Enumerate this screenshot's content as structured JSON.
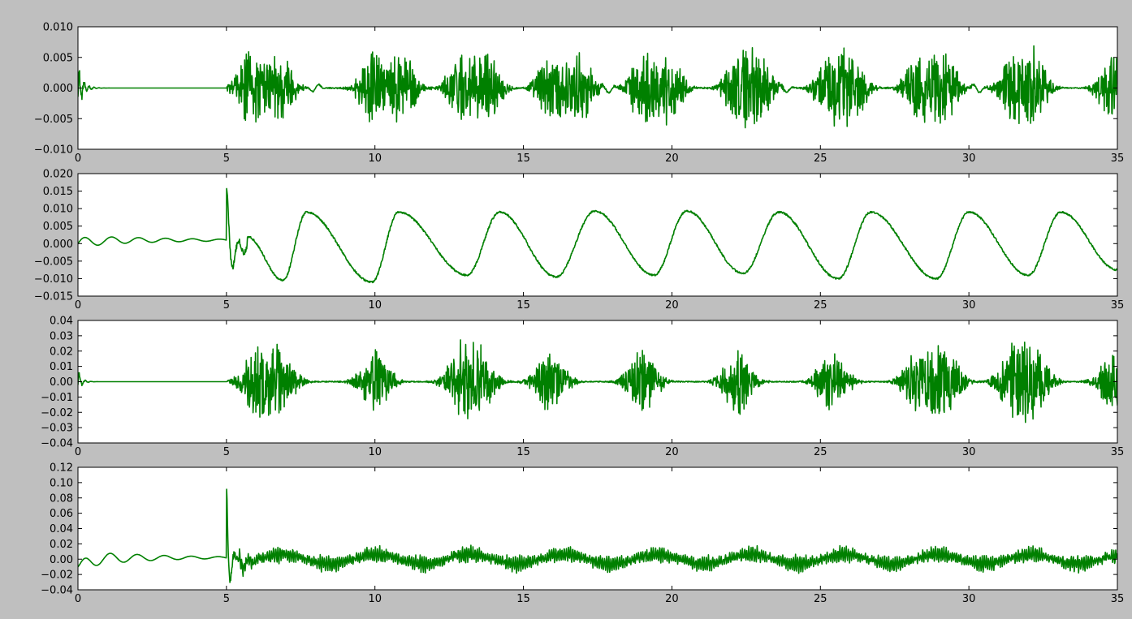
{
  "figure": {
    "background": "#bfbfbf",
    "line_color": "#008000",
    "axes_background": "#ffffff"
  },
  "chart_data": [
    {
      "type": "line",
      "title": "",
      "xlabel": "",
      "ylabel": "",
      "xlim": [
        0,
        35
      ],
      "ylim": [
        -0.01,
        0.01
      ],
      "grid": false,
      "xticks": [
        0,
        5,
        10,
        15,
        20,
        25,
        30,
        35
      ],
      "xtick_labels": [
        "0",
        "5",
        "10",
        "15",
        "20",
        "25",
        "30",
        "35"
      ],
      "yticks": [
        -0.01,
        -0.005,
        0.0,
        0.005,
        0.01
      ],
      "ytick_labels": [
        "−0.010",
        "−0.005",
        "0.000",
        "0.005",
        "0.010"
      ],
      "signal": {
        "kind": "bursts",
        "baseline": 0.0,
        "initial_oscillation": {
          "amplitude": 0.003,
          "freq": 6.0,
          "decay": 6.0
        },
        "burst_centers": [
          5.8,
          6.8,
          9.9,
          10.9,
          12.9,
          13.8,
          15.9,
          16.9,
          19.0,
          19.9,
          22.2,
          22.9,
          25.3,
          26.1,
          28.3,
          29.2,
          31.5,
          32.2,
          34.8
        ],
        "burst_amplitude": 0.0062,
        "burst_width": 0.35,
        "slow_hump_centers": [
          8.0,
          11.2,
          17.9,
          23.8,
          30.3
        ],
        "slow_hump_amplitude": 0.0008,
        "x_start_bursts": 5.0
      }
    },
    {
      "type": "line",
      "title": "",
      "xlabel": "",
      "ylabel": "",
      "xlim": [
        0,
        35
      ],
      "ylim": [
        -0.015,
        0.02
      ],
      "grid": false,
      "xticks": [
        0,
        5,
        10,
        15,
        20,
        25,
        30,
        35
      ],
      "xtick_labels": [
        "0",
        "5",
        "10",
        "15",
        "20",
        "25",
        "30",
        "35"
      ],
      "yticks": [
        -0.015,
        -0.01,
        -0.005,
        0.0,
        0.005,
        0.01,
        0.015,
        0.02
      ],
      "ytick_labels": [
        "−0.015",
        "−0.010",
        "−0.005",
        "0.000",
        "0.005",
        "0.010",
        "0.015",
        "0.020"
      ],
      "signal": {
        "kind": "slow_wave",
        "initial_oscillation": {
          "amplitude": 0.0015,
          "offset": 0.001,
          "freq": 1.1,
          "decay": 0.35
        },
        "spike": {
          "x": 5.05,
          "peak": 0.0172,
          "trough": -0.0085
        },
        "wave_peaks": [
          {
            "x": 7.7,
            "y": 0.009
          },
          {
            "x": 10.8,
            "y": 0.009
          },
          {
            "x": 14.2,
            "y": 0.009
          },
          {
            "x": 17.4,
            "y": 0.0093
          },
          {
            "x": 20.5,
            "y": 0.0093
          },
          {
            "x": 23.6,
            "y": 0.009
          },
          {
            "x": 26.7,
            "y": 0.009
          },
          {
            "x": 30.0,
            "y": 0.009
          },
          {
            "x": 33.1,
            "y": 0.009
          }
        ],
        "wave_troughs": [
          {
            "x": 6.9,
            "y": -0.0105
          },
          {
            "x": 9.9,
            "y": -0.011
          },
          {
            "x": 13.1,
            "y": -0.009
          },
          {
            "x": 16.1,
            "y": -0.0095
          },
          {
            "x": 19.4,
            "y": -0.009
          },
          {
            "x": 22.4,
            "y": -0.0085
          },
          {
            "x": 25.6,
            "y": -0.01
          },
          {
            "x": 28.9,
            "y": -0.01
          },
          {
            "x": 32.0,
            "y": -0.009
          },
          {
            "x": 35.0,
            "y": -0.0075
          }
        ],
        "noise_amplitude": 0.0009
      }
    },
    {
      "type": "line",
      "title": "",
      "xlabel": "",
      "ylabel": "",
      "xlim": [
        0,
        35
      ],
      "ylim": [
        -0.04,
        0.04
      ],
      "grid": false,
      "xticks": [
        0,
        5,
        10,
        15,
        20,
        25,
        30,
        35
      ],
      "xtick_labels": [
        "0",
        "5",
        "10",
        "15",
        "20",
        "25",
        "30",
        "35"
      ],
      "yticks": [
        -0.04,
        -0.03,
        -0.02,
        -0.01,
        0.0,
        0.01,
        0.02,
        0.03,
        0.04
      ],
      "ytick_labels": [
        "−0.04",
        "−0.03",
        "−0.02",
        "−0.01",
        "0.00",
        "0.01",
        "0.02",
        "0.03",
        "0.04"
      ],
      "signal": {
        "kind": "bursts",
        "baseline": 0.0,
        "initial_oscillation": {
          "amplitude": 0.006,
          "freq": 5.0,
          "decay": 8.0
        },
        "burst_centers": [
          6.0,
          6.8,
          10.0,
          12.9,
          13.5,
          15.9,
          19.0,
          22.2,
          25.4,
          28.3,
          29.2,
          31.5,
          32.2,
          34.9
        ],
        "burst_amplitude": 0.022,
        "burst_width": 0.4,
        "slow_hump_centers": [],
        "slow_hump_amplitude": 0.0,
        "x_start_bursts": 5.0
      }
    },
    {
      "type": "line",
      "title": "",
      "xlabel": "",
      "ylabel": "",
      "xlim": [
        0,
        35
      ],
      "ylim": [
        -0.04,
        0.12
      ],
      "grid": false,
      "xticks": [
        0,
        5,
        10,
        15,
        20,
        25,
        30,
        35
      ],
      "xtick_labels": [
        "0",
        "5",
        "10",
        "15",
        "20",
        "25",
        "30",
        "35"
      ],
      "yticks": [
        -0.04,
        -0.02,
        0.0,
        0.02,
        0.04,
        0.06,
        0.08,
        0.1,
        0.12
      ],
      "ytick_labels": [
        "−0.04",
        "−0.02",
        "0.00",
        "0.02",
        "0.04",
        "0.06",
        "0.08",
        "0.10",
        "0.12"
      ],
      "signal": {
        "kind": "envelope_carrier",
        "initial_oscillation": {
          "amplitude": 0.011,
          "offset": 0.0,
          "freq": 1.1,
          "decay": 0.45
        },
        "spike": {
          "x": 5.02,
          "peak": 0.103,
          "trough": -0.023
        },
        "envelope_period": 3.15,
        "envelope_phase_x": 6.9,
        "envelope_mean_amplitude": 0.011,
        "carrier_amplitude": 0.012,
        "carrier_freq": 14.0
      }
    }
  ]
}
